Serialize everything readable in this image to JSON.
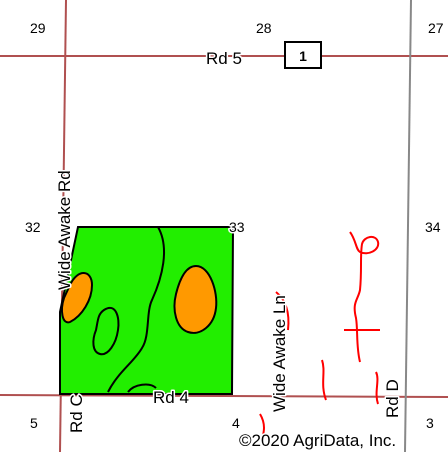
{
  "map": {
    "copyright": "©2020 AgriData, Inc.",
    "section_numbers": {
      "nw": "29",
      "n": "28",
      "ne": "27",
      "w": "32",
      "center": "33",
      "e": "34",
      "sw": "5",
      "s": "4",
      "se": "3"
    },
    "roads": {
      "rd5": "Rd 5",
      "rd4": "Rd 4",
      "rd_c": "Rd C",
      "rd_d": "Rd D",
      "wide_awake_rd": "Wide Awake Rd",
      "wide_awake_ln": "Wide Awake Ln"
    },
    "route_shield": "1",
    "colors": {
      "field": "#22ee00",
      "soil_patch": "#ff9900",
      "road_line": "#b05050",
      "stream": "#ff0000",
      "boundary": "#000000",
      "section_line": "#888888"
    }
  }
}
